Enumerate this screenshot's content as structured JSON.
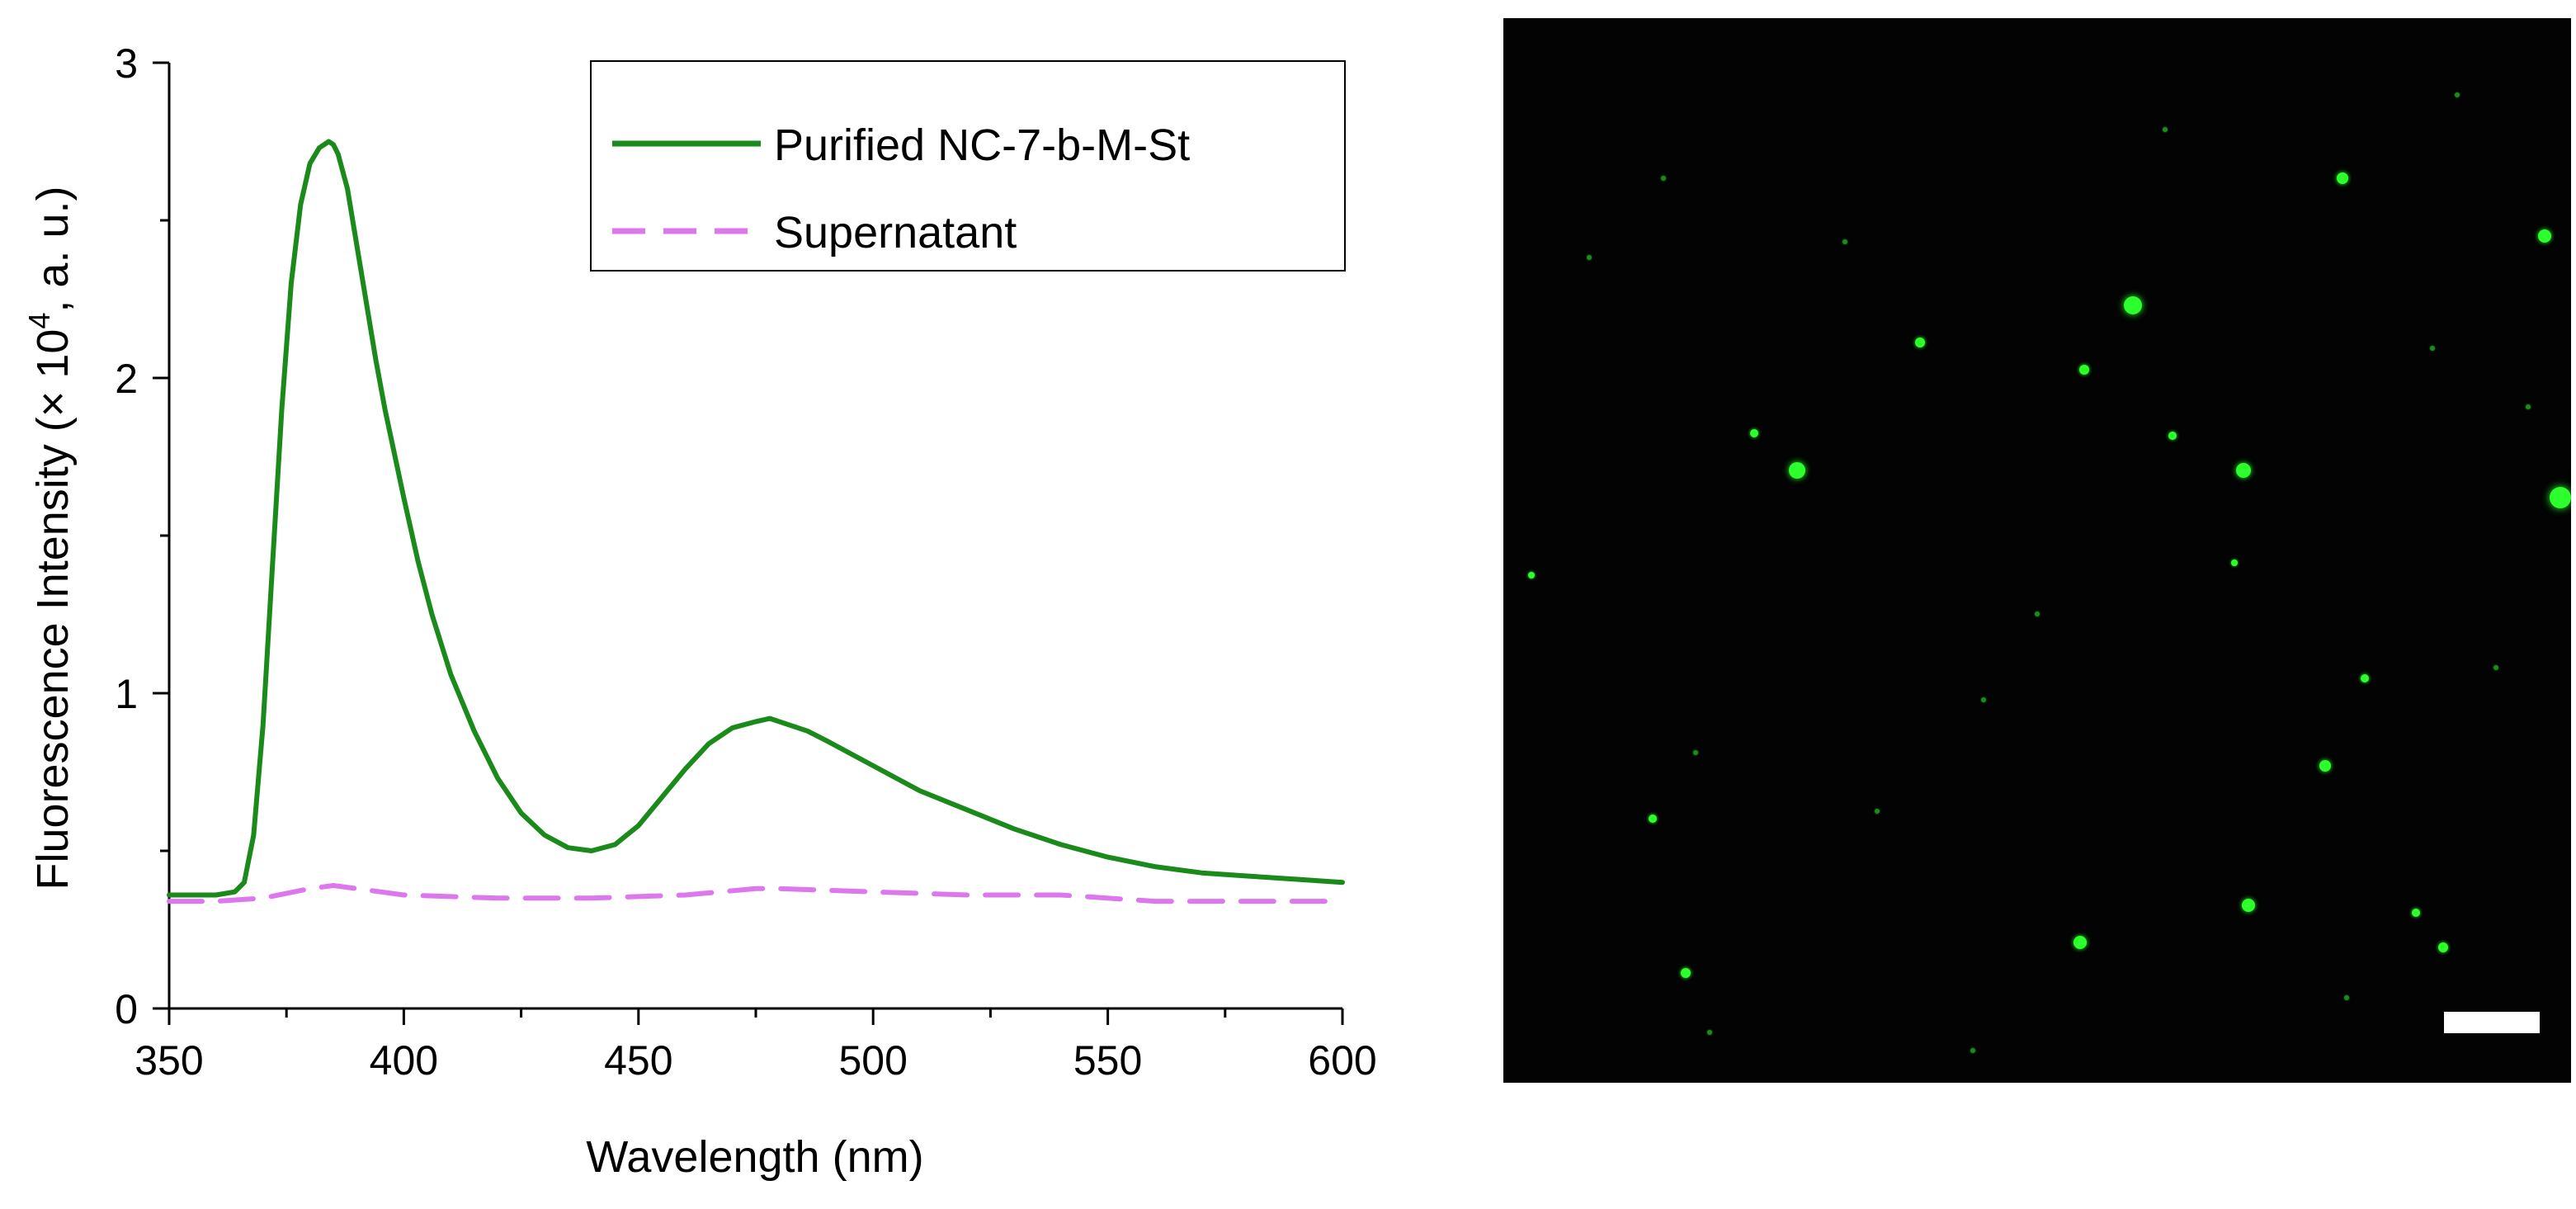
{
  "chart_data": {
    "type": "line",
    "xlabel": "Wavelength (nm)",
    "ylabel_main": "Fluorescence Intensity (× 10",
    "ylabel_sup": "4",
    "ylabel_tail": ", a. u.)",
    "xlim": [
      350,
      600
    ],
    "ylim": [
      0,
      3
    ],
    "x_ticks": [
      350,
      400,
      450,
      500,
      550,
      600
    ],
    "y_ticks": [
      0,
      1,
      2,
      3
    ],
    "grid": false,
    "legend_position": "top-right",
    "series": [
      {
        "name": "Purified NC-7-b-M-St",
        "color": "#1a8a1a",
        "style": "solid",
        "x": [
          350,
          355,
          360,
          364,
          366,
          368,
          370,
          372,
          374,
          376,
          378,
          380,
          382,
          384,
          385,
          386,
          388,
          390,
          392,
          394,
          396,
          398,
          400,
          403,
          406,
          410,
          415,
          420,
          425,
          430,
          435,
          440,
          445,
          450,
          455,
          460,
          465,
          470,
          475,
          478,
          482,
          486,
          490,
          495,
          500,
          505,
          510,
          520,
          530,
          540,
          550,
          560,
          570,
          580,
          590,
          600
        ],
        "y": [
          0.36,
          0.36,
          0.36,
          0.37,
          0.4,
          0.55,
          0.9,
          1.4,
          1.9,
          2.3,
          2.55,
          2.68,
          2.73,
          2.75,
          2.74,
          2.71,
          2.6,
          2.42,
          2.24,
          2.06,
          1.9,
          1.76,
          1.62,
          1.42,
          1.25,
          1.06,
          0.88,
          0.73,
          0.62,
          0.55,
          0.51,
          0.5,
          0.52,
          0.58,
          0.67,
          0.76,
          0.84,
          0.89,
          0.91,
          0.92,
          0.9,
          0.88,
          0.85,
          0.81,
          0.77,
          0.73,
          0.69,
          0.63,
          0.57,
          0.52,
          0.48,
          0.45,
          0.43,
          0.42,
          0.41,
          0.4
        ]
      },
      {
        "name": "Supernatant",
        "color": "#dd77ee",
        "style": "dashed",
        "x": [
          350,
          360,
          370,
          380,
          385,
          390,
          400,
          420,
          440,
          460,
          475,
          480,
          500,
          520,
          540,
          560,
          580,
          600
        ],
        "y": [
          0.34,
          0.34,
          0.35,
          0.38,
          0.39,
          0.38,
          0.36,
          0.35,
          0.35,
          0.36,
          0.38,
          0.38,
          0.37,
          0.36,
          0.36,
          0.34,
          0.34,
          0.34
        ]
      }
    ]
  },
  "micrograph": {
    "background": "#020302",
    "spot_color": "#2cff2c",
    "scale_bar_color": "#ffffff",
    "spots": [
      {
        "fx": 0.59,
        "fy": 0.27,
        "r": 11
      },
      {
        "fx": 0.275,
        "fy": 0.425,
        "r": 10
      },
      {
        "fx": 0.693,
        "fy": 0.425,
        "r": 9
      },
      {
        "fx": 0.99,
        "fy": 0.45,
        "r": 13
      },
      {
        "fx": 0.786,
        "fy": 0.15,
        "r": 7
      },
      {
        "fx": 0.39,
        "fy": 0.305,
        "r": 6
      },
      {
        "fx": 0.544,
        "fy": 0.33,
        "r": 6
      },
      {
        "fx": 0.235,
        "fy": 0.39,
        "r": 5
      },
      {
        "fx": 0.627,
        "fy": 0.392,
        "r": 5
      },
      {
        "fx": 0.685,
        "fy": 0.512,
        "r": 4
      },
      {
        "fx": 0.026,
        "fy": 0.523,
        "r": 4
      },
      {
        "fx": 0.807,
        "fy": 0.62,
        "r": 5
      },
      {
        "fx": 0.77,
        "fy": 0.702,
        "r": 7
      },
      {
        "fx": 0.14,
        "fy": 0.752,
        "r": 5
      },
      {
        "fx": 0.698,
        "fy": 0.833,
        "r": 8
      },
      {
        "fx": 0.54,
        "fy": 0.868,
        "r": 8
      },
      {
        "fx": 0.171,
        "fy": 0.897,
        "r": 6
      },
      {
        "fx": 0.855,
        "fy": 0.84,
        "r": 5
      },
      {
        "fx": 0.88,
        "fy": 0.873,
        "r": 6
      },
      {
        "fx": 0.975,
        "fy": 0.205,
        "r": 8
      },
      {
        "fx": 0.193,
        "fy": 0.953,
        "r": 3
      },
      {
        "fx": 0.44,
        "fy": 0.97,
        "r": 3
      },
      {
        "fx": 0.893,
        "fy": 0.072,
        "r": 3
      },
      {
        "fx": 0.08,
        "fy": 0.225,
        "r": 3
      },
      {
        "fx": 0.32,
        "fy": 0.21,
        "r": 3
      },
      {
        "fx": 0.5,
        "fy": 0.56,
        "r": 3
      },
      {
        "fx": 0.18,
        "fy": 0.69,
        "r": 3
      },
      {
        "fx": 0.93,
        "fy": 0.61,
        "r": 3
      },
      {
        "fx": 0.79,
        "fy": 0.92,
        "r": 3
      },
      {
        "fx": 0.35,
        "fy": 0.745,
        "r": 3
      },
      {
        "fx": 0.62,
        "fy": 0.105,
        "r": 3
      },
      {
        "fx": 0.87,
        "fy": 0.31,
        "r": 3
      },
      {
        "fx": 0.15,
        "fy": 0.15,
        "r": 3
      },
      {
        "fx": 0.45,
        "fy": 0.64,
        "r": 3
      },
      {
        "fx": 0.96,
        "fy": 0.365,
        "r": 3
      }
    ]
  }
}
